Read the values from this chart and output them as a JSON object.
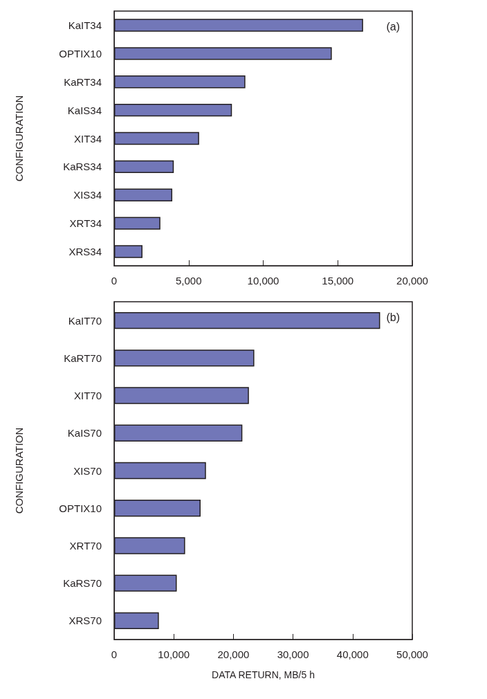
{
  "chart_data": [
    {
      "type": "bar",
      "orientation": "horizontal",
      "ylabel": "CONFIGURATION",
      "annotations": [
        "(a)"
      ],
      "grid": false,
      "categories": [
        "KaIT34",
        "OPTIX10",
        "KaRT34",
        "KaIS34",
        "XIT34",
        "KaRS34",
        "XIS34",
        "XRT34",
        "XRS34"
      ],
      "values": [
        16700,
        14600,
        8800,
        7900,
        5700,
        4000,
        3900,
        3100,
        1900
      ],
      "color": "#7277b8",
      "xlim": [
        0,
        20000
      ],
      "xticks": [
        0,
        {
          "value": 5000,
          "label": "5,000"
        },
        {
          "value": 10000,
          "label": "10,000"
        },
        {
          "value": 15000,
          "label": "15,000"
        },
        {
          "value": 20000,
          "label": "20,000"
        }
      ]
    },
    {
      "type": "bar",
      "orientation": "horizontal",
      "ylabel": "CONFIGURATION",
      "xlabel": "DATA RETURN, MB/5 h",
      "annotations": [
        "(b)"
      ],
      "grid": false,
      "categories": [
        "KaIT70",
        "KaRT70",
        "XIT70",
        "KaIS70",
        "XIS70",
        "OPTIX10",
        "XRT70",
        "KaRS70",
        "XRS70"
      ],
      "values": [
        44600,
        23500,
        22600,
        21500,
        15400,
        14500,
        11900,
        10500,
        7500
      ],
      "color": "#7277b8",
      "xlim": [
        0,
        50000
      ],
      "xticks": [
        0,
        {
          "value": 10000,
          "label": "10,000"
        },
        {
          "value": 20000,
          "label": "20,000"
        },
        {
          "value": 30000,
          "label": "30,000"
        },
        {
          "value": 40000,
          "label": "40,000"
        },
        {
          "value": 50000,
          "label": "50,000"
        }
      ]
    }
  ]
}
